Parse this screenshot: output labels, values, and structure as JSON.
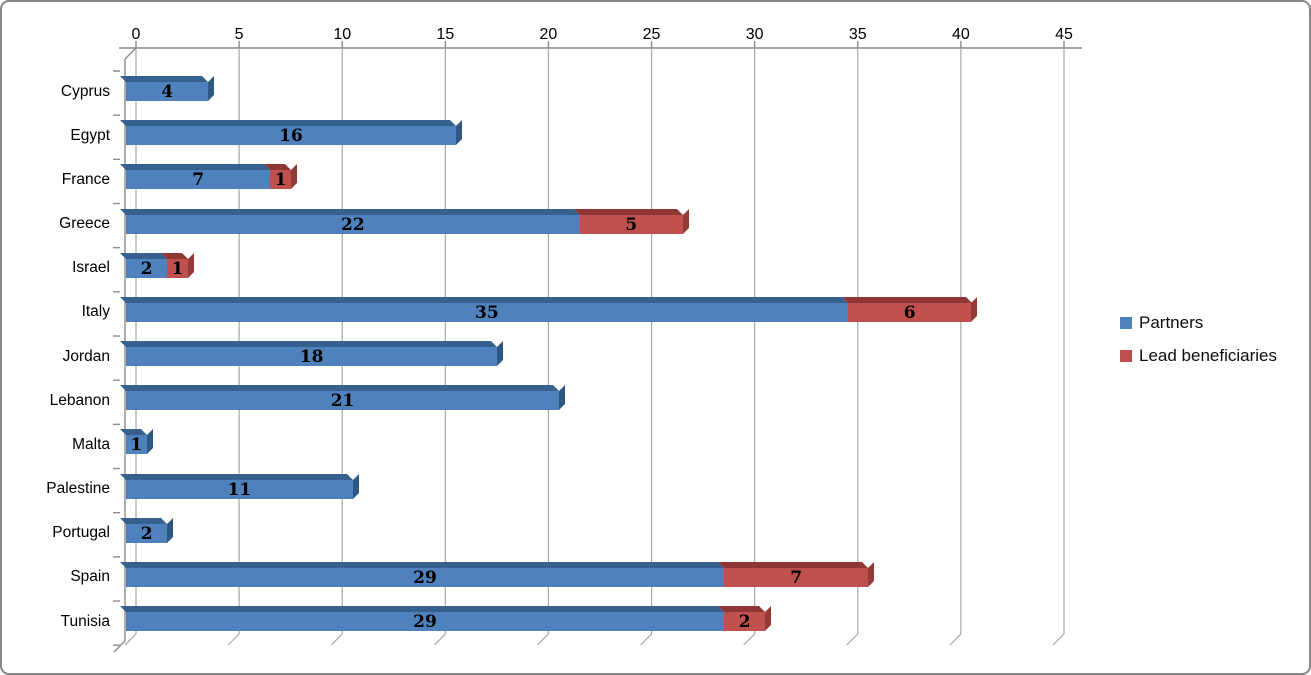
{
  "chart_data": {
    "type": "bar",
    "orientation": "horizontal-stacked-3d",
    "title": "",
    "categories": [
      "Cyprus",
      "Egypt",
      "France",
      "Greece",
      "Israel",
      "Italy",
      "Jordan",
      "Lebanon",
      "Malta",
      "Palestine",
      "Portugal",
      "Spain",
      "Tunisia"
    ],
    "series": [
      {
        "name": "Partners",
        "color": "#4f81bd",
        "color_top": "#36618f",
        "color_side": "#2e5784",
        "values": [
          4,
          16,
          7,
          22,
          2,
          35,
          18,
          21,
          1,
          11,
          2,
          29,
          29
        ]
      },
      {
        "name": "Lead beneficiaries",
        "color": "#c0504d",
        "color_top": "#8e3734",
        "color_side": "#943a37",
        "values": [
          0,
          0,
          1,
          5,
          1,
          6,
          0,
          0,
          0,
          0,
          0,
          7,
          2
        ]
      }
    ],
    "value_axis": {
      "position": "top",
      "min": 0,
      "max": 45,
      "tick_interval": 5,
      "ticks": [
        "0",
        "5",
        "10",
        "15",
        "20",
        "25",
        "30",
        "35",
        "40",
        "45"
      ]
    },
    "grid": true,
    "legend": {
      "position": "right",
      "entries": [
        {
          "label": "Partners",
          "color": "#4f81bd"
        },
        {
          "label": "Lead beneficiaries",
          "color": "#c0504d"
        }
      ]
    },
    "data_labels": "inside-center"
  },
  "colors": {
    "gridline": "#a6a6a6",
    "axis": "#8c8c8c",
    "background": "#ffffff",
    "border": "#878787",
    "text": "#000000"
  }
}
